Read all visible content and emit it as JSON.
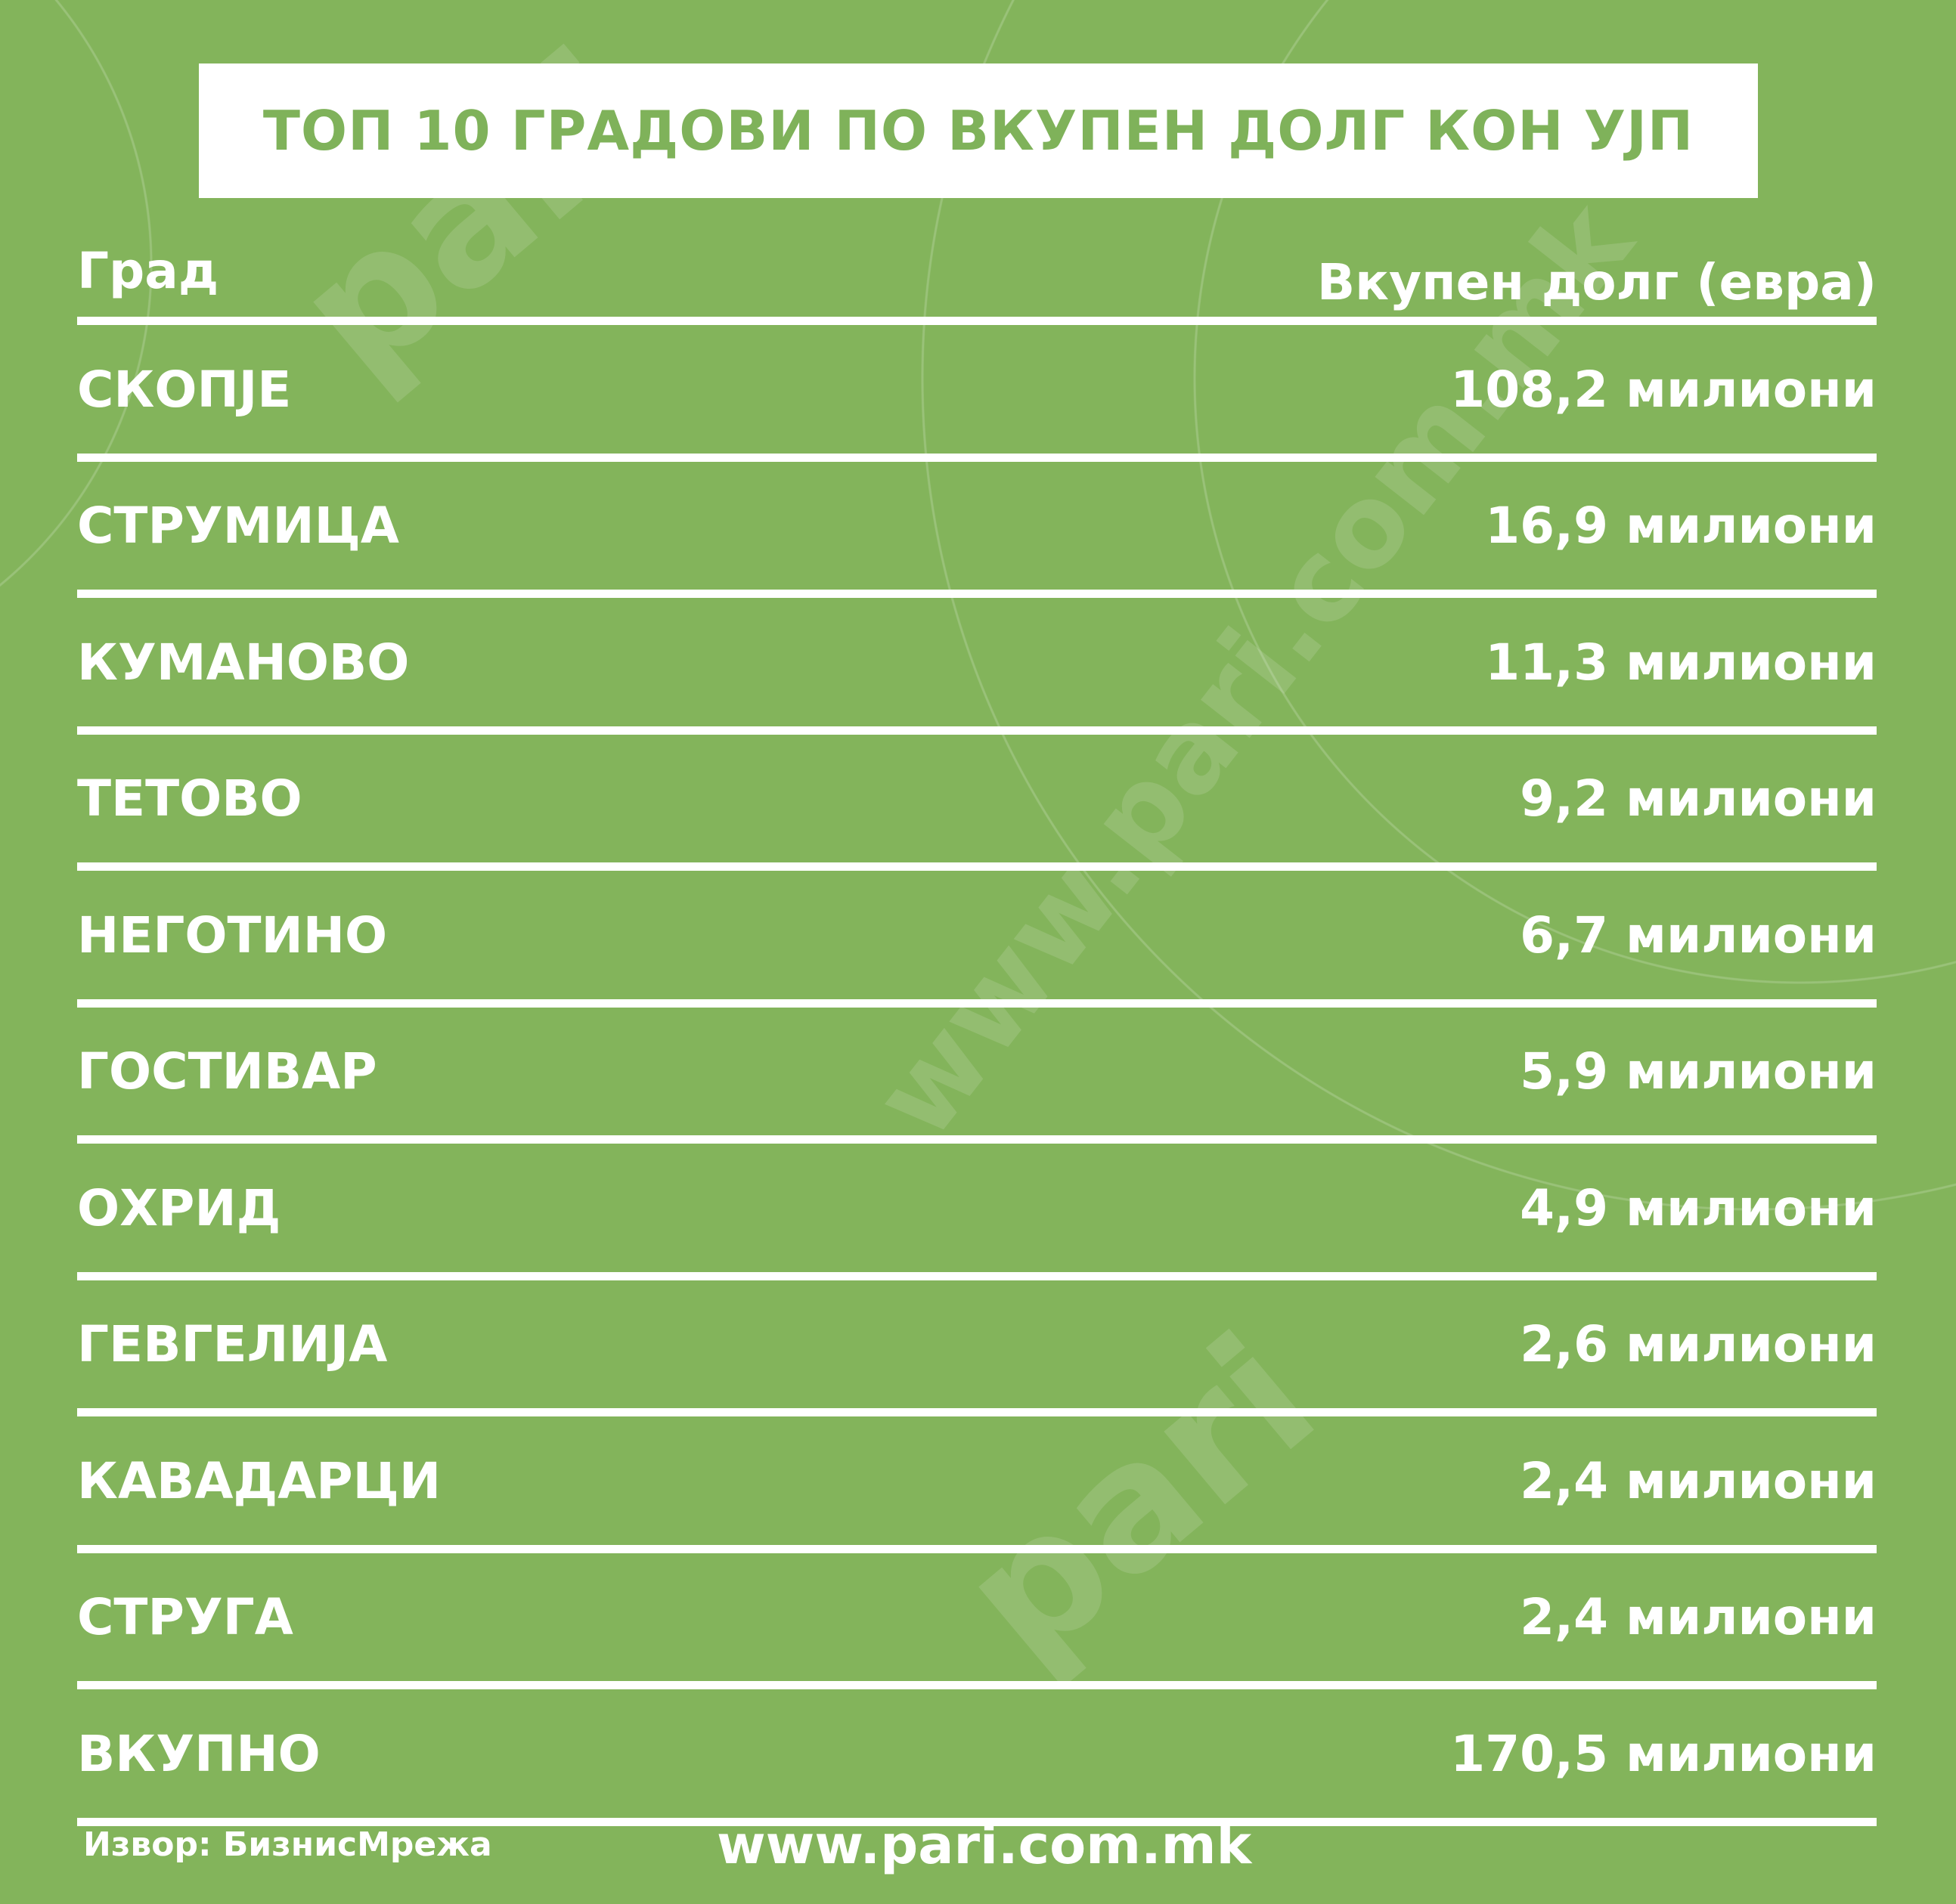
{
  "title": "ТОП 10 ГРАДОВИ ПО ВКУПЕН ДОЛГ КОН УЈП",
  "header": {
    "city": "Град",
    "debt": "Вкупен долг (евра)"
  },
  "rows": [
    {
      "city": "СКОПЈЕ",
      "debt": "108,2 милиони"
    },
    {
      "city": "СТРУМИЦА",
      "debt": "16,9 милиони"
    },
    {
      "city": "КУМАНОВО",
      "debt": "11,3 милиони"
    },
    {
      "city": "ТЕТОВО",
      "debt": "9,2 милиони"
    },
    {
      "city": "НЕГОТИНО",
      "debt": "6,7 милиони"
    },
    {
      "city": "ГОСТИВАР",
      "debt": "5,9 милиони"
    },
    {
      "city": "ОХРИД",
      "debt": "4,9 милиони"
    },
    {
      "city": "ГЕВГЕЛИЈА",
      "debt": "2,6 милиони"
    },
    {
      "city": "КАВАДАРЦИ",
      "debt": "2,4 милиони"
    },
    {
      "city": "СТРУГА",
      "debt": "2,4 милиони"
    },
    {
      "city": "ВКУПНО",
      "debt": "170,5 милиони"
    }
  ],
  "footer": {
    "source": "Извор: БизнисМрежа",
    "url": "www.pari.com.mk"
  },
  "watermark": "www.pari.com.mk",
  "colors": {
    "background": "#83b45b",
    "title_text": "#7fb25a"
  }
}
